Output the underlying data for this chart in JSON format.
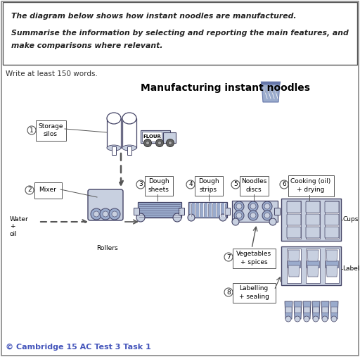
{
  "page_bg": "#ffffff",
  "prompt_line1": "The diagram below shows how instant noodles are manufactured.",
  "prompt_line2": "Summarise the information by selecting and reporting the main features, and",
  "prompt_line3": "make comparisons where relevant.",
  "write_text": "Write at least 150 words.",
  "title_text": "Manufacturing instant noodles",
  "footer_text": "© Cambridge 15 AC Test 3 Task 1",
  "footer_color": "#4455bb",
  "dc": "#6677aa",
  "dl": "#c8d0e0",
  "dm": "#9aabcc",
  "dk": "#444466"
}
